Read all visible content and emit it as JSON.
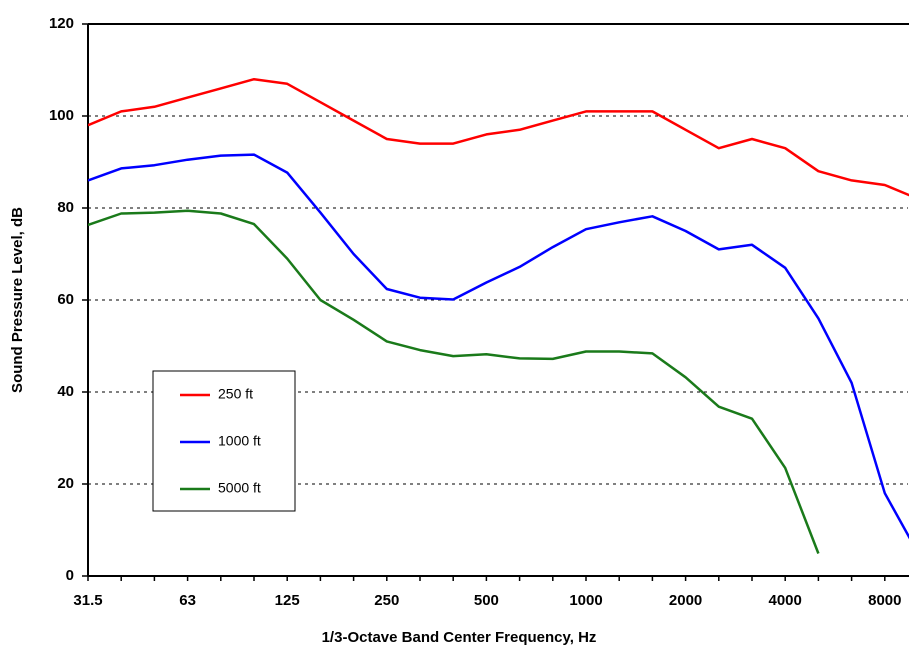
{
  "chart_data": {
    "type": "line",
    "xlabel": "1/3-Octave Band Center Frequency, Hz",
    "ylabel": "Sound Pressure Level, dB",
    "categories": [
      "31.5",
      null,
      null,
      "63",
      null,
      null,
      "125",
      null,
      null,
      "250",
      null,
      null,
      "500",
      null,
      null,
      "1000",
      null,
      null,
      "2000",
      null,
      null,
      "4000",
      null,
      null,
      "8000",
      null
    ],
    "series": [
      {
        "name": "250 ft",
        "color": "#ff0000",
        "values": [
          98,
          101,
          102,
          104,
          106,
          108,
          107,
          103,
          99,
          95,
          94,
          94,
          96,
          97,
          99,
          101,
          101,
          101,
          97,
          93,
          95,
          93,
          88,
          86,
          85,
          82
        ]
      },
      {
        "name": "1000 ft",
        "color": "#0000ff",
        "values": [
          86,
          88.6,
          89.3,
          90.5,
          91.4,
          91.6,
          87.7,
          79,
          70,
          62.4,
          60.5,
          60.1,
          63.8,
          67.2,
          71.5,
          75.4,
          76.9,
          78.2,
          75,
          71,
          72,
          67,
          56,
          42,
          18,
          5
        ]
      },
      {
        "name": "5000 ft",
        "color": "#1a7a1a",
        "values": [
          76.3,
          78.8,
          79,
          79.4,
          78.8,
          76.5,
          69,
          60,
          55.7,
          51,
          49.1,
          47.8,
          48.2,
          47.3,
          47.2,
          48.8,
          48.8,
          48.4,
          43.2,
          36.8,
          34.2,
          23.5,
          4.9,
          null,
          null,
          null
        ]
      }
    ],
    "ylim": [
      0,
      120
    ],
    "yticks": [
      0,
      20,
      40,
      60,
      80,
      100,
      120
    ],
    "grid": true,
    "legend": "lower left"
  }
}
